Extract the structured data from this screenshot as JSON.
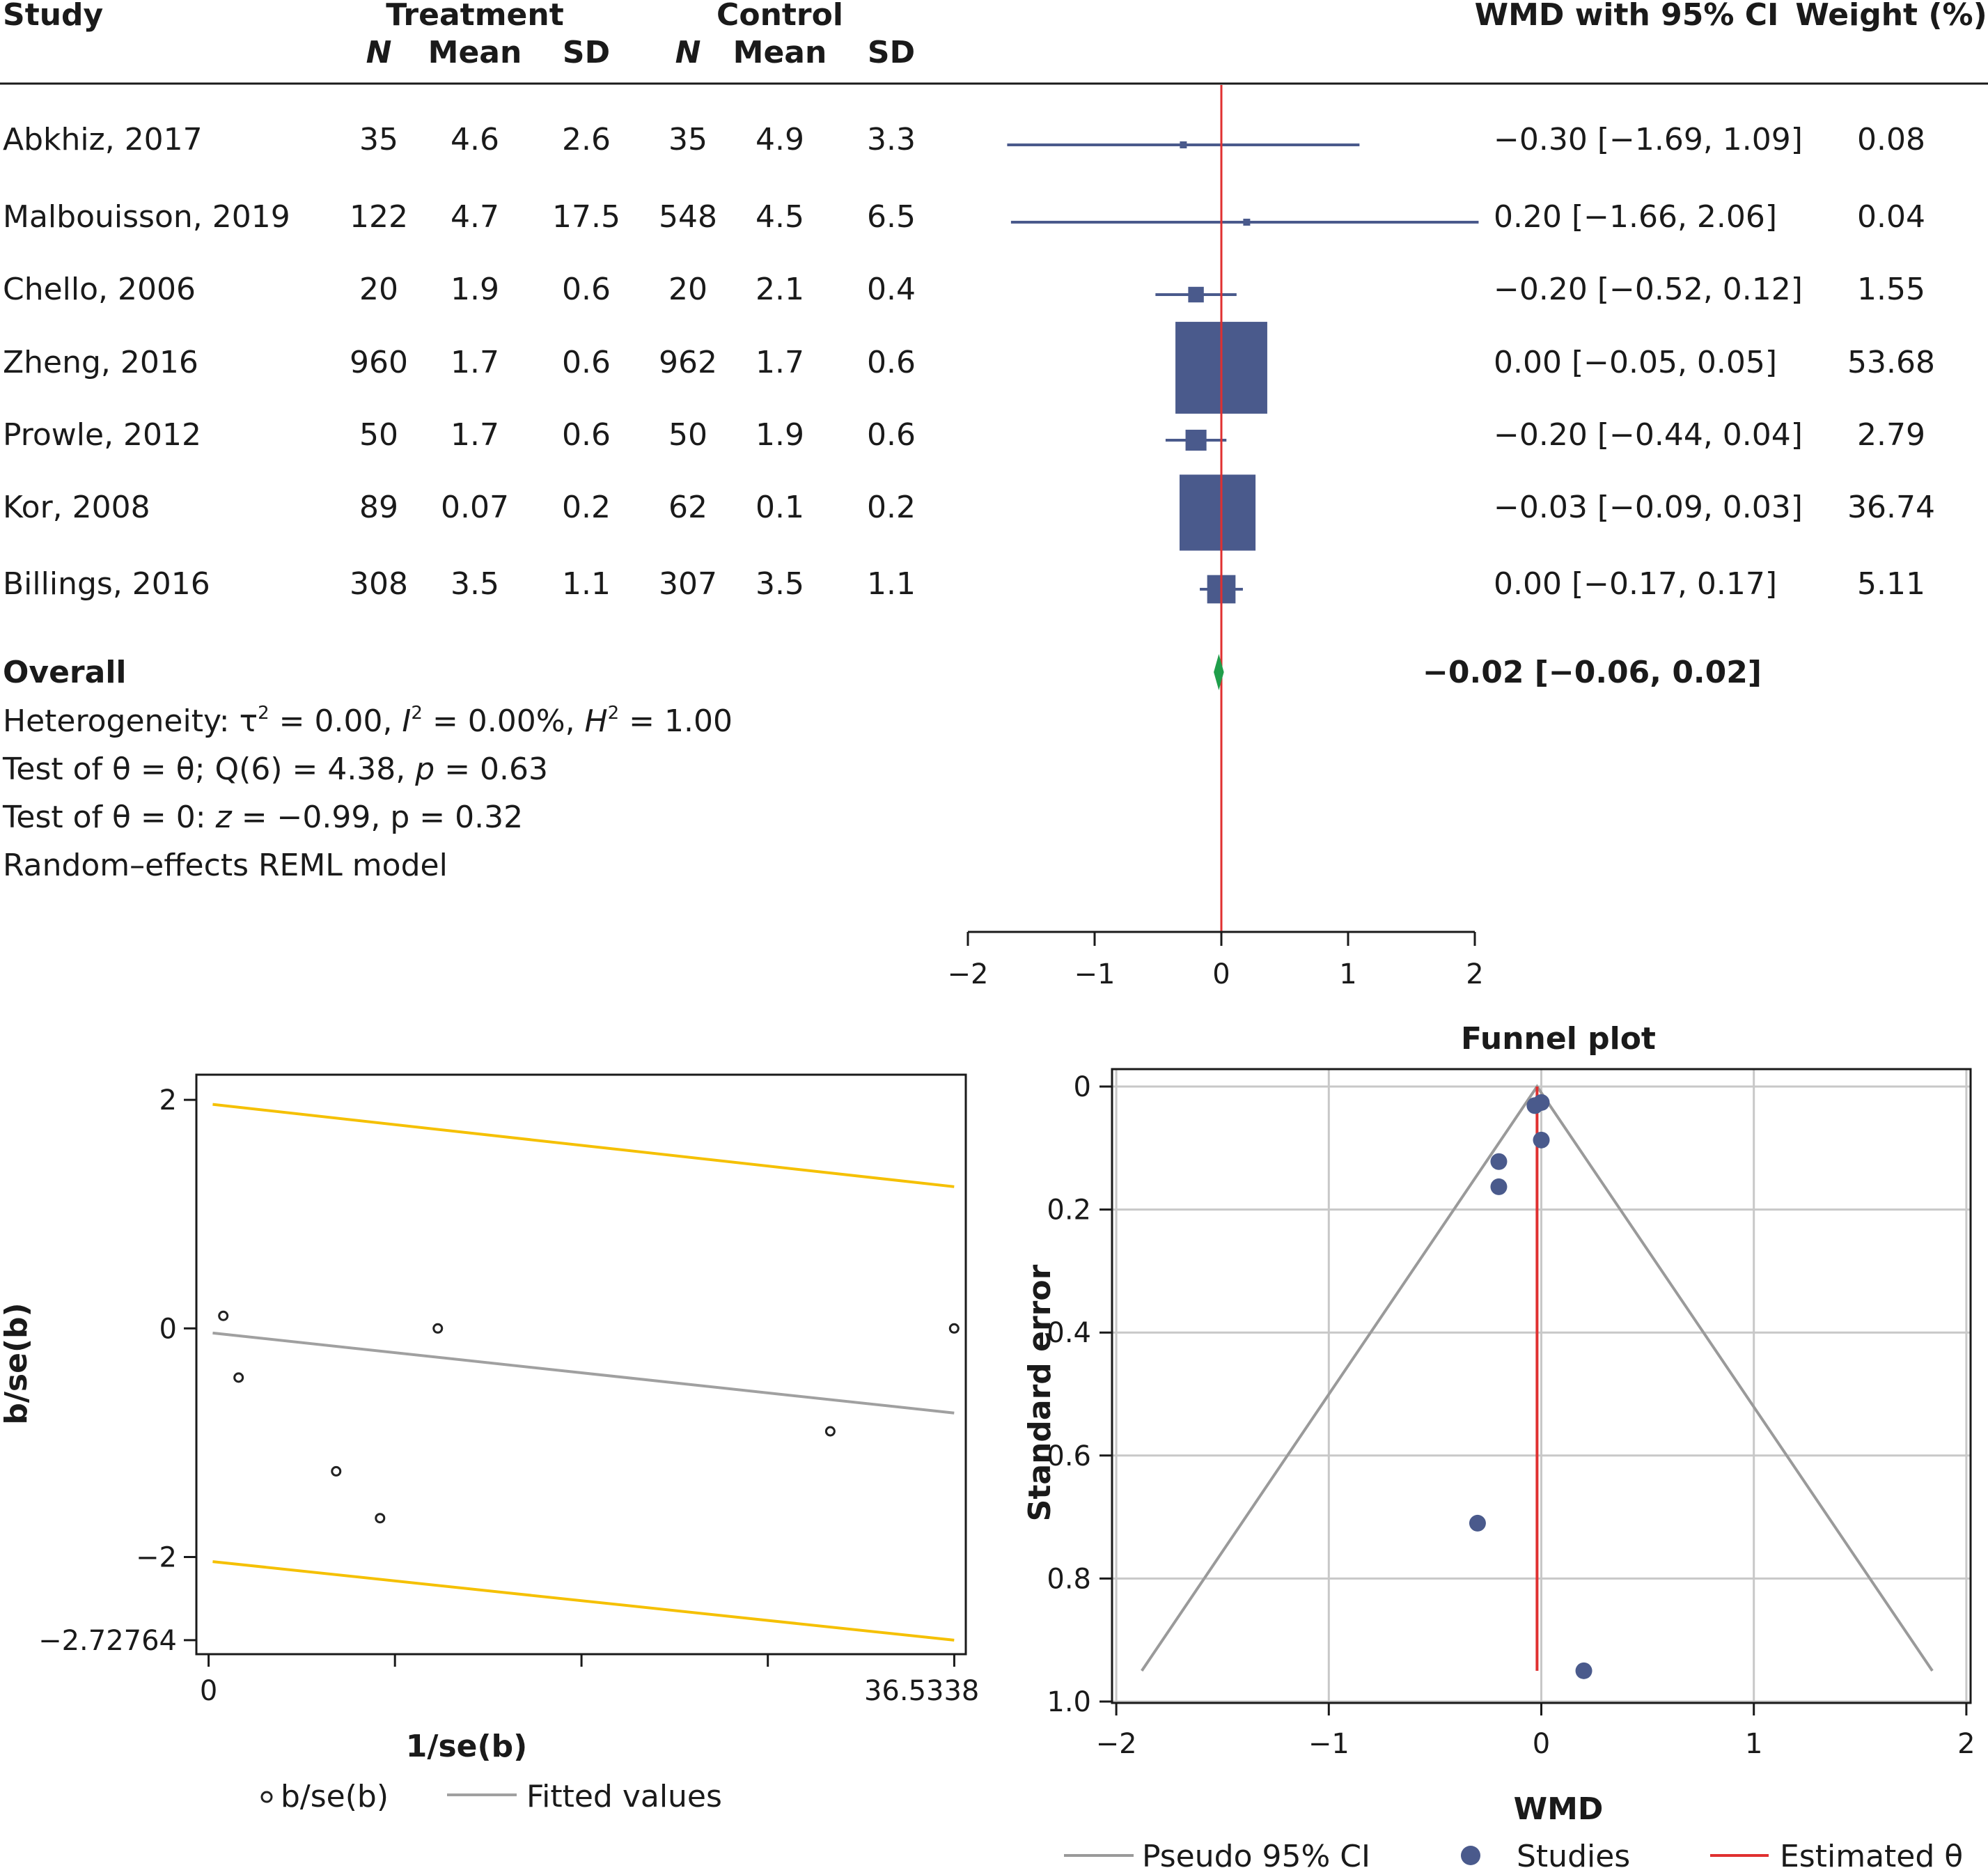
{
  "chart_data": [
    {
      "type": "forest",
      "columns": {
        "study": "Study",
        "treatment": "Treatment",
        "control": "Control",
        "n": "N",
        "mean": "Mean",
        "sd": "SD",
        "effect": "WMD with 95% CI",
        "weight": "Weight (%)"
      },
      "studies": [
        {
          "name": "Abkhiz, 2017",
          "t_n": "35",
          "t_mean": "4.6",
          "t_sd": "2.6",
          "c_n": "35",
          "c_mean": "4.9",
          "c_sd": "3.3",
          "ci_text": "−0.30 [−1.69, 1.09]",
          "weight_text": "0.08",
          "wmd": -0.3,
          "lo": -1.69,
          "hi": 1.09,
          "weight": 0.08
        },
        {
          "name": "Malbouisson, 2019",
          "t_n": "122",
          "t_mean": "4.7",
          "t_sd": "17.5",
          "c_n": "548",
          "c_mean": "4.5",
          "c_sd": "6.5",
          "ci_text": "0.20 [−1.66, 2.06]",
          "weight_text": "0.04",
          "wmd": 0.2,
          "lo": -1.66,
          "hi": 2.06,
          "weight": 0.04
        },
        {
          "name": "Chello, 2006",
          "t_n": "20",
          "t_mean": "1.9",
          "t_sd": "0.6",
          "c_n": "20",
          "c_mean": "2.1",
          "c_sd": "0.4",
          "ci_text": "−0.20 [−0.52, 0.12]",
          "weight_text": "1.55",
          "wmd": -0.2,
          "lo": -0.52,
          "hi": 0.12,
          "weight": 1.55
        },
        {
          "name": "Zheng, 2016",
          "t_n": "960",
          "t_mean": "1.7",
          "t_sd": "0.6",
          "c_n": "962",
          "c_mean": "1.7",
          "c_sd": "0.6",
          "ci_text": "0.00 [−0.05, 0.05]",
          "weight_text": "53.68",
          "wmd": 0.0,
          "lo": -0.05,
          "hi": 0.05,
          "weight": 53.68
        },
        {
          "name": "Prowle, 2012",
          "t_n": "50",
          "t_mean": "1.7",
          "t_sd": "0.6",
          "c_n": "50",
          "c_mean": "1.9",
          "c_sd": "0.6",
          "ci_text": "−0.20 [−0.44, 0.04]",
          "weight_text": "2.79",
          "wmd": -0.2,
          "lo": -0.44,
          "hi": 0.04,
          "weight": 2.79
        },
        {
          "name": "Kor, 2008",
          "t_n": "89",
          "t_mean": "0.07",
          "t_sd": "0.2",
          "c_n": "62",
          "c_mean": "0.1",
          "c_sd": "0.2",
          "ci_text": "−0.03 [−0.09, 0.03]",
          "weight_text": "36.74",
          "wmd": -0.03,
          "lo": -0.09,
          "hi": 0.03,
          "weight": 36.74
        },
        {
          "name": "Billings, 2016",
          "t_n": "308",
          "t_mean": "3.5",
          "t_sd": "1.1",
          "c_n": "307",
          "c_mean": "3.5",
          "c_sd": "1.1",
          "ci_text": "0.00 [−0.17, 0.17]",
          "weight_text": "5.11",
          "wmd": 0.0,
          "lo": -0.17,
          "hi": 0.17,
          "weight": 5.11
        }
      ],
      "overall": {
        "label": "Overall",
        "ci_text": "−0.02 [−0.06, 0.02]",
        "wmd": -0.02,
        "lo": -0.06,
        "hi": 0.02
      },
      "notes": {
        "het_a": "Heterogeneity: τ",
        "het_b": " = 0.00, ",
        "het_i": "I",
        "het_c": " = 0.00%, ",
        "het_h": "H",
        "het_d": " = 1.00",
        "sup2": "2",
        "test1_a": "Test of  θ = θ; Q(6) = 4.38, ",
        "test1_p": "p",
        "test1_b": " = 0.63",
        "test2_a": "Test of θ = 0: ",
        "test2_z": "z",
        "test2_b": " = −0.99, p = 0.32",
        "model": "Random–effects REML model"
      },
      "xlim": [
        -2,
        2
      ],
      "ticks": [
        -2,
        -1,
        0,
        1,
        2
      ],
      "tick_labels": [
        "−2",
        "−1",
        "0",
        "1",
        "2"
      ],
      "colors": {
        "marker": "#4a5a8c",
        "ref_line": "#e03030",
        "diamond": "#1f9e4a"
      }
    },
    {
      "type": "scatter",
      "xlabel": "1/se(b)",
      "ylabel": "b/se(b)",
      "x_tick_labels": [
        "0",
        "36.5338"
      ],
      "x_ticks": [
        0,
        36.5338
      ],
      "x_minor_ticks": [
        9.13,
        18.27,
        27.4
      ],
      "y_tick_labels": [
        "−2.72764",
        "−2",
        "0",
        "2"
      ],
      "y_ticks": [
        -2.72764,
        -2,
        0,
        2
      ],
      "xlim": [
        -0.6,
        37.1
      ],
      "ylim": [
        -2.85,
        2.22
      ],
      "points": [
        {
          "x": 0.72,
          "y": 0.11
        },
        {
          "x": 1.47,
          "y": -0.43
        },
        {
          "x": 6.25,
          "y": -1.25
        },
        {
          "x": 8.4,
          "y": -1.66
        },
        {
          "x": 11.23,
          "y": 0.0
        },
        {
          "x": 30.46,
          "y": -0.9
        },
        {
          "x": 36.53,
          "y": 0.0
        }
      ],
      "fitted": {
        "x": [
          0.2,
          36.53
        ],
        "y": [
          -0.04,
          -0.74
        ]
      },
      "bounds": [
        {
          "x": [
            0.2,
            36.53
          ],
          "y": [
            1.96,
            1.24
          ]
        },
        {
          "x": [
            0.2,
            36.53
          ],
          "y": [
            -2.04,
            -2.72764
          ]
        }
      ],
      "legend": [
        "b/se(b)",
        "Fitted values"
      ],
      "colors": {
        "fitted": "#a0a0a0",
        "bounds": "#f5c000",
        "points": "#222222"
      }
    },
    {
      "type": "scatter",
      "title": "Funnel plot",
      "xlabel": "WMD",
      "ylabel": "Standard error",
      "xlim": [
        -2.02,
        2.02
      ],
      "ylim": [
        0,
        1.0
      ],
      "y_reversed": true,
      "x_ticks": [
        -2,
        -1,
        0,
        1,
        2
      ],
      "x_tick_labels": [
        "−2",
        "−1",
        "0",
        "1",
        "2"
      ],
      "y_ticks": [
        0,
        0.2,
        0.4,
        0.6,
        0.8,
        1.0
      ],
      "y_tick_labels": [
        "0",
        "0.2",
        "0.4",
        "0.6",
        "0.8",
        "1.0"
      ],
      "points": [
        {
          "x": -0.3,
          "y": 0.71
        },
        {
          "x": 0.2,
          "y": 0.95
        },
        {
          "x": -0.2,
          "y": 0.163
        },
        {
          "x": 0.0,
          "y": 0.026
        },
        {
          "x": -0.2,
          "y": 0.122
        },
        {
          "x": -0.03,
          "y": 0.031
        },
        {
          "x": 0.0,
          "y": 0.087
        }
      ],
      "pseudo_ci": {
        "apex": [
          -0.02,
          0.0
        ],
        "left": [
          -1.88,
          0.95
        ],
        "right": [
          1.84,
          0.95
        ]
      },
      "estimate": {
        "x": -0.02,
        "y": [
          0,
          0.95
        ]
      },
      "legend": [
        "Pseudo 95% CI",
        "Studies",
        "Estimated θ"
      ],
      "colors": {
        "grid": "#c8c8c8",
        "ci": "#9a9a9a",
        "points": "#4a5a8c",
        "estimate": "#e03030"
      }
    }
  ]
}
